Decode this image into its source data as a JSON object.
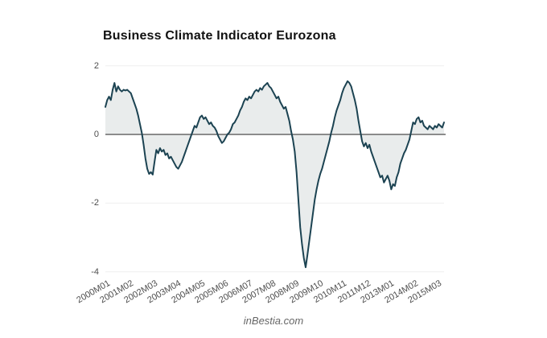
{
  "title": "Business Climate Indicator Eurozona",
  "watermark": "inBestia.com",
  "colors": {
    "line": "#1c4352",
    "area_fill": "#e9ecec",
    "zero_axis": "#747474",
    "gridline": "#efefef",
    "axis_label": "#4d4d4d",
    "title": "#111111",
    "watermark": "#666666",
    "background": "#ffffff"
  },
  "chart_data": {
    "type": "area",
    "title": "Business Climate Indicator Eurozona",
    "xlabel": "",
    "ylabel": "",
    "x_start": "2000M01",
    "x_frequency": "monthly",
    "x_tick_interval": 13,
    "x_tick_labels": [
      "2000M01",
      "2001M02",
      "2002M03",
      "2003M04",
      "2004M05",
      "2005M06",
      "2006M07",
      "2007M08",
      "2008M09",
      "2009M10",
      "2010M11",
      "2011M12",
      "2013M01",
      "2014M02",
      "2015M03"
    ],
    "y_tick_labels": [
      "2",
      "0",
      "-2",
      "-4"
    ],
    "y_ticks": [
      2,
      0,
      -2,
      -4
    ],
    "ylim": [
      -4,
      2
    ],
    "baseline": 0,
    "grid": true,
    "legend_position": "none",
    "values": [
      0.8,
      1.0,
      1.1,
      1.0,
      1.3,
      1.5,
      1.25,
      1.4,
      1.3,
      1.25,
      1.3,
      1.28,
      1.3,
      1.25,
      1.2,
      1.05,
      0.9,
      0.75,
      0.55,
      0.3,
      0.05,
      -0.3,
      -0.7,
      -1.0,
      -1.15,
      -1.1,
      -1.17,
      -0.8,
      -0.45,
      -0.55,
      -0.4,
      -0.5,
      -0.45,
      -0.6,
      -0.55,
      -0.7,
      -0.65,
      -0.75,
      -0.85,
      -0.95,
      -1.0,
      -0.9,
      -0.8,
      -0.65,
      -0.5,
      -0.35,
      -0.2,
      -0.05,
      0.1,
      0.25,
      0.2,
      0.35,
      0.5,
      0.55,
      0.45,
      0.5,
      0.4,
      0.3,
      0.35,
      0.25,
      0.2,
      0.1,
      -0.05,
      -0.15,
      -0.25,
      -0.2,
      -0.1,
      0.0,
      0.05,
      0.15,
      0.3,
      0.35,
      0.45,
      0.55,
      0.7,
      0.8,
      0.95,
      1.05,
      1.0,
      1.1,
      1.05,
      1.15,
      1.25,
      1.3,
      1.25,
      1.35,
      1.3,
      1.4,
      1.45,
      1.5,
      1.4,
      1.35,
      1.25,
      1.15,
      1.05,
      1.1,
      0.95,
      0.85,
      0.75,
      0.8,
      0.6,
      0.4,
      0.1,
      -0.15,
      -0.5,
      -1.1,
      -1.9,
      -2.7,
      -3.2,
      -3.6,
      -3.87,
      -3.5,
      -3.1,
      -2.7,
      -2.3,
      -1.9,
      -1.6,
      -1.35,
      -1.15,
      -1.0,
      -0.8,
      -0.6,
      -0.4,
      -0.2,
      0.05,
      0.25,
      0.5,
      0.7,
      0.85,
      1.0,
      1.2,
      1.35,
      1.45,
      1.55,
      1.5,
      1.4,
      1.2,
      1.0,
      0.75,
      0.4,
      0.1,
      -0.2,
      -0.35,
      -0.25,
      -0.4,
      -0.3,
      -0.5,
      -0.65,
      -0.8,
      -0.95,
      -1.1,
      -1.25,
      -1.2,
      -1.4,
      -1.3,
      -1.2,
      -1.35,
      -1.6,
      -1.45,
      -1.5,
      -1.25,
      -1.1,
      -0.85,
      -0.7,
      -0.55,
      -0.45,
      -0.3,
      -0.15,
      0.1,
      0.35,
      0.3,
      0.45,
      0.5,
      0.35,
      0.4,
      0.25,
      0.2,
      0.15,
      0.25,
      0.2,
      0.15,
      0.25,
      0.2,
      0.3,
      0.25,
      0.2,
      0.35
    ]
  }
}
